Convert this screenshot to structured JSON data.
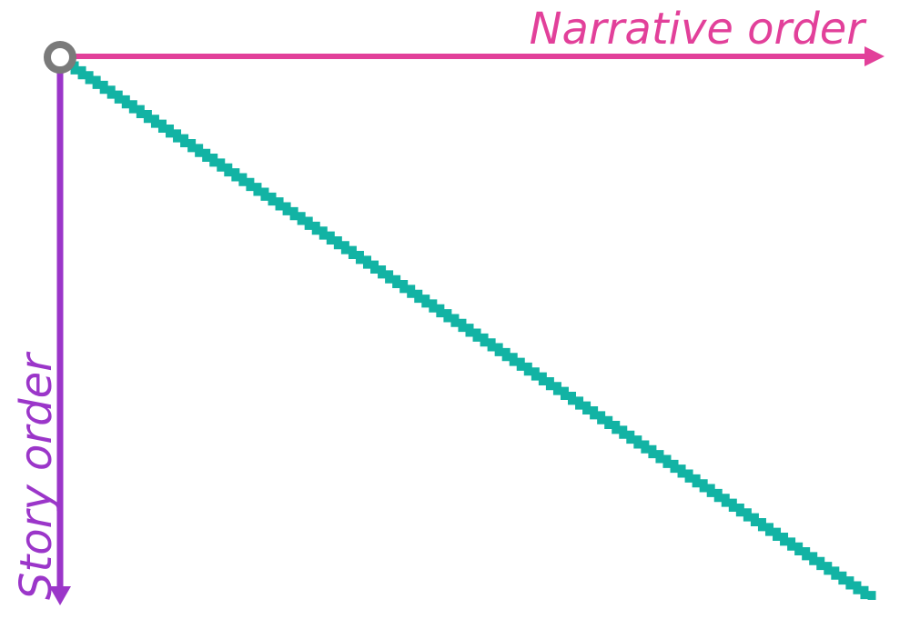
{
  "diagram": {
    "x_axis": {
      "label": "Narrative order",
      "color": "#e2409a"
    },
    "y_axis": {
      "label": "Story order",
      "color": "#9b36c9"
    },
    "origin": {
      "color": "#7a7a7a"
    },
    "line": {
      "color": "#12b3a4",
      "style": "jagged"
    }
  }
}
